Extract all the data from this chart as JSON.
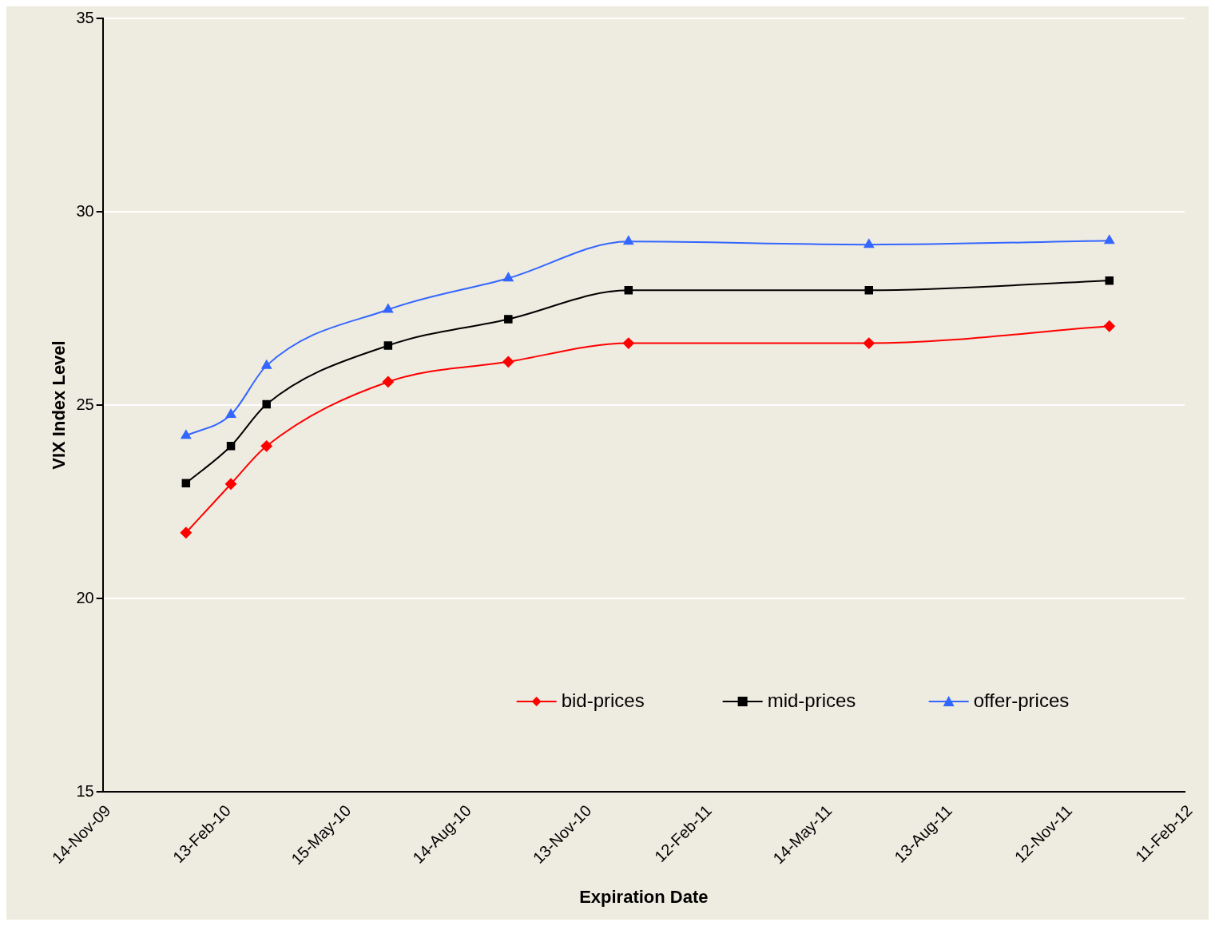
{
  "chart_data": {
    "type": "line",
    "xlabel": "Expiration Date",
    "ylabel": "VIX Index Level",
    "xlim": [
      "2009-11-14",
      "2012-02-11"
    ],
    "xticks": [
      {
        "value": "2009-11-14",
        "label": "14-Nov-09"
      },
      {
        "value": "2010-02-13",
        "label": "13-Feb-10"
      },
      {
        "value": "2010-05-15",
        "label": "15-May-10"
      },
      {
        "value": "2010-08-14",
        "label": "14-Aug-10"
      },
      {
        "value": "2010-11-13",
        "label": "13-Nov-10"
      },
      {
        "value": "2011-02-12",
        "label": "12-Feb-11"
      },
      {
        "value": "2011-05-14",
        "label": "14-May-11"
      },
      {
        "value": "2011-08-13",
        "label": "13-Aug-11"
      },
      {
        "value": "2011-11-12",
        "label": "12-Nov-11"
      },
      {
        "value": "2012-02-11",
        "label": "11-Feb-12"
      }
    ],
    "ylim": [
      15,
      35
    ],
    "yticks": [
      15,
      20,
      25,
      30,
      35
    ],
    "grid": "y",
    "legend": "bottom",
    "x": [
      "2010-01-16",
      "2010-02-19",
      "2010-03-18",
      "2010-06-18",
      "2010-09-17",
      "2010-12-17",
      "2011-06-17",
      "2011-12-16"
    ],
    "series": [
      {
        "name": "bid-prices",
        "color": "#ff0000",
        "marker": "diamond",
        "values": [
          21.7,
          22.96,
          23.94,
          25.6,
          26.12,
          26.6,
          26.6,
          27.04
        ]
      },
      {
        "name": "mid-prices",
        "color": "#000000",
        "marker": "square",
        "values": [
          22.98,
          23.94,
          25.02,
          26.54,
          27.22,
          27.97,
          27.97,
          28.22
        ]
      },
      {
        "name": "offer-prices",
        "color": "#3366ff",
        "marker": "triangle",
        "values": [
          24.21,
          24.75,
          26.02,
          27.47,
          28.28,
          29.23,
          29.15,
          29.25
        ]
      }
    ]
  }
}
